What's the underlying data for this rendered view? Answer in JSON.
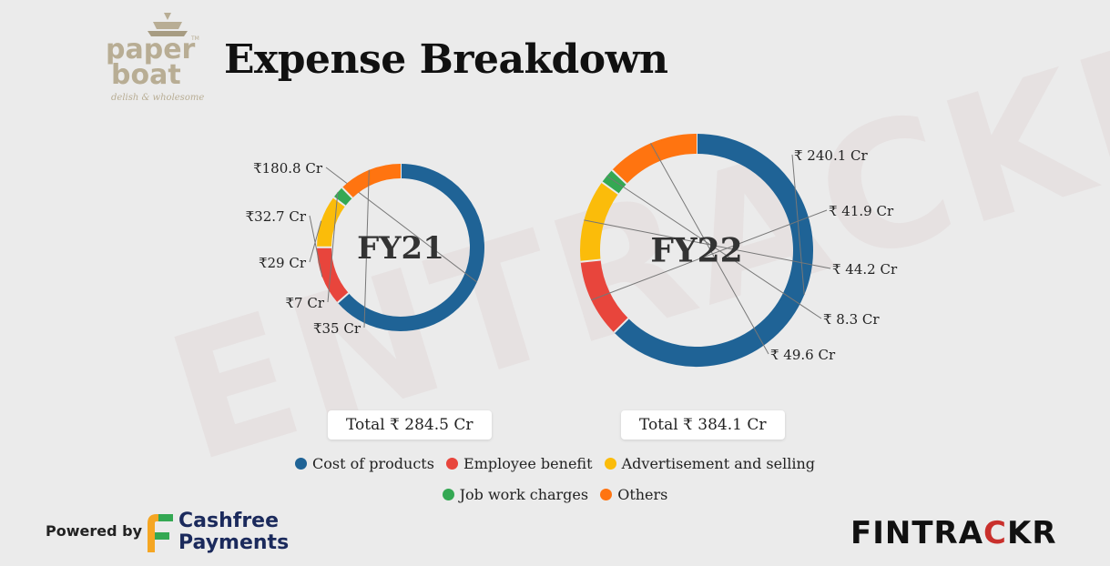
{
  "header": {
    "title": "Expense Breakdown",
    "logo_line1": "paper",
    "logo_line2": "boat",
    "logo_tagline": "delish & wholesome",
    "logo_tm": "TM"
  },
  "watermark": "ENTRACKR",
  "chart_data": {
    "type": "pie",
    "categories": [
      "Cost of products",
      "Employee benefit",
      "Advertisement and selling",
      "Job work charges",
      "Others"
    ],
    "colors": [
      "#1f6396",
      "#e8453c",
      "#fbbc0a",
      "#34a853",
      "#ff7410"
    ],
    "charts": [
      {
        "center_label": "FY21",
        "values": [
          180.8,
          32.7,
          29,
          7,
          35
        ],
        "value_labels": [
          "₹180.8 Cr",
          "₹32.7 Cr",
          "₹29 Cr",
          "₹7 Cr",
          "₹35 Cr"
        ],
        "total_label": "Total ₹ 284.5 Cr"
      },
      {
        "center_label": "FY22",
        "values": [
          240.1,
          41.9,
          44.2,
          8.3,
          49.6
        ],
        "value_labels": [
          "₹ 240.1 Cr",
          "₹ 41.9 Cr",
          "₹ 44.2 Cr",
          "₹ 8.3 Cr",
          "₹ 49.6 Cr"
        ],
        "total_label": "Total ₹ 384.1 Cr"
      }
    ],
    "legend_placement": "bottom"
  },
  "footer": {
    "powered_by": "Powered by",
    "cashfree_line1": "Cashfree",
    "cashfree_line2": "Payments",
    "fintrackr_pre": "FINTRA",
    "fintrackr_accent": "C",
    "fintrackr_post": "KR"
  }
}
